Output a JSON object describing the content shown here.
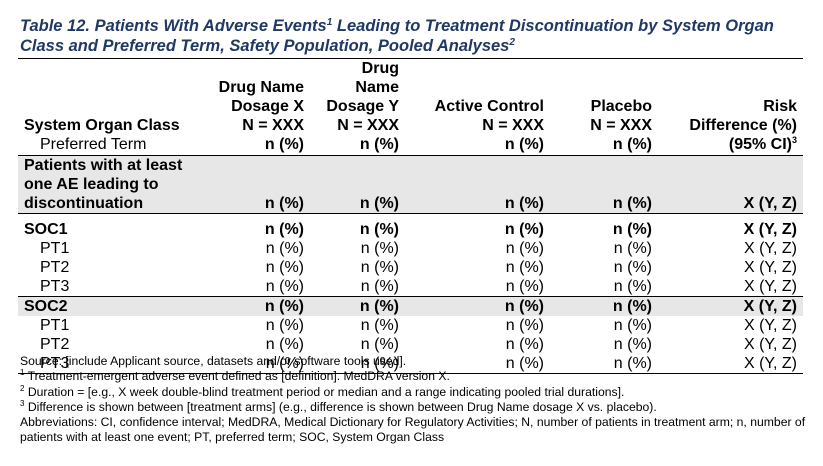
{
  "title": {
    "part1": "Table 12. Patients With Adverse Events",
    "sup1": "1",
    "part2": " Leading to Treatment Discontinuation by System Organ Class and Preferred Term, Safety Population, Pooled Analyses",
    "sup2": "2"
  },
  "header": {
    "col0": {
      "line1": "System Organ Class",
      "line2": "Preferred Term"
    },
    "col1": {
      "line1": "Drug Name",
      "line2": "Dosage X",
      "line3": "N = XXX",
      "line4": "n (%)"
    },
    "col2": {
      "line1": "Drug Name",
      "line2": "Dosage Y",
      "line3": "N = XXX",
      "line4": "n (%)"
    },
    "col3": {
      "line1": "Active Control",
      "line2": "N = XXX",
      "line3": "n (%)"
    },
    "col4": {
      "line1": "Placebo",
      "line2": "N = XXX",
      "line3": "n (%)"
    },
    "col5": {
      "line1": "Risk",
      "line2": "Difference (%)",
      "line3": "(95% CI)",
      "sup": "3"
    }
  },
  "any_row": {
    "label": "Patients with at least one AE leading to discontinuation",
    "c1": "n (%)",
    "c2": "n (%)",
    "c3": "n (%)",
    "c4": "n (%)",
    "c5": "X (Y, Z)"
  },
  "soc1": {
    "soc": {
      "label": "SOC1",
      "c1": "n (%)",
      "c2": "n (%)",
      "c3": "n (%)",
      "c4": "n (%)",
      "c5": "X (Y, Z)"
    },
    "pts": [
      {
        "label": "PT1",
        "c1": "n (%)",
        "c2": "n (%)",
        "c3": "n (%)",
        "c4": "n (%)",
        "c5": "X (Y, Z)"
      },
      {
        "label": "PT2",
        "c1": "n (%)",
        "c2": "n (%)",
        "c3": "n (%)",
        "c4": "n (%)",
        "c5": "X (Y, Z)"
      },
      {
        "label": "PT3",
        "c1": "n (%)",
        "c2": "n (%)",
        "c3": "n (%)",
        "c4": "n (%)",
        "c5": "X (Y, Z)"
      }
    ]
  },
  "soc2": {
    "soc": {
      "label": "SOC2",
      "c1": "n (%)",
      "c2": "n (%)",
      "c3": "n (%)",
      "c4": "n (%)",
      "c5": "X (Y, Z)"
    },
    "pts": [
      {
        "label": "PT1",
        "c1": "n (%)",
        "c2": "n (%)",
        "c3": "n (%)",
        "c4": "n (%)",
        "c5": "X (Y, Z)"
      },
      {
        "label": "PT2",
        "c1": "n (%)",
        "c2": "n (%)",
        "c3": "n (%)",
        "c4": "n (%)",
        "c5": "X (Y, Z)"
      },
      {
        "label": "PT3",
        "c1": "n (%)",
        "c2": "n (%)",
        "c3": "n (%)",
        "c4": "n (%)",
        "c5": "X (Y, Z)"
      }
    ]
  },
  "notes": {
    "source": "Source: [include Applicant source, datasets and/or software tools used].",
    "fn1_num": "1",
    "fn1": " Treatment-emergent adverse event defined as [definition]. MedDRA version X.",
    "fn2_num": "2",
    "fn2": " Duration = [e.g., X week double-blind treatment period or median and a range indicating pooled trial durations].",
    "fn3_num": "3",
    "fn3": " Difference is shown between [treatment arms] (e.g., difference is shown between Drug Name dosage X vs. placebo).",
    "abbrev": "Abbreviations: CI, confidence interval; MedDRA, Medical Dictionary for Regulatory Activities; N, number of patients in treatment arm; n, number of patients with at least one event; PT, preferred term; SOC, System Organ Class"
  },
  "colors": {
    "title": "#1f3864",
    "shade": "#e7e7e7"
  }
}
